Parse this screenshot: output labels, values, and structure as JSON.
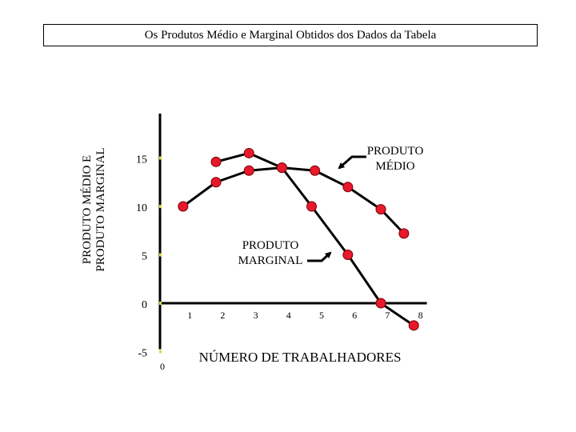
{
  "chart_data": {
    "type": "line",
    "title": "Os Produtos Médio e Marginal Obtidos dos Dados da Tabela",
    "xlabel": "NÚMERO DE TRABALHADORES",
    "ylabel_lines": [
      "PRODUTO MÉDIO E",
      "PRODUTO MARGINAL"
    ],
    "x_origin_label": "0",
    "xticks": [
      {
        "x": 1,
        "label": "1"
      },
      {
        "x": 2,
        "label": "2"
      },
      {
        "x": 3,
        "label": "3"
      },
      {
        "x": 4,
        "label": "4"
      },
      {
        "x": 5,
        "label": "5"
      },
      {
        "x": 6,
        "label": "6"
      },
      {
        "x": 7,
        "label": "7"
      },
      {
        "x": 8,
        "label": "8"
      }
    ],
    "yticks": [
      {
        "y": 15,
        "label": "15"
      },
      {
        "y": 10,
        "label": "10"
      },
      {
        "y": 5,
        "label": "5"
      },
      {
        "y": 0,
        "label": "0"
      },
      {
        "y": -5,
        "label": "-5"
      }
    ],
    "xlim": [
      0,
      8
    ],
    "ylim": [
      -5,
      20
    ],
    "grid": false,
    "series": [
      {
        "name": "PRODUTO MÉDIO",
        "label_lines": [
          "PRODUTO",
          "MÉDIO"
        ],
        "x": [
          0.7,
          1.7,
          2.7,
          3.7,
          4.7,
          5.7,
          6.7,
          7.4
        ],
        "y": [
          10,
          12.5,
          13.7,
          14,
          13.7,
          12,
          9.7,
          7.2
        ],
        "color": "#000000"
      },
      {
        "name": "PRODUTO MARGINAL",
        "label_lines": [
          "PRODUTO",
          "MARGINAL"
        ],
        "x": [
          1.7,
          2.7,
          3.7,
          4.6,
          5.7,
          6.7,
          7.7
        ],
        "y": [
          14.6,
          15.5,
          14,
          10,
          5,
          0,
          -2.3
        ],
        "color": "#000000"
      }
    ],
    "marker_color": "#e8192c",
    "marker_edge": "#7a0000"
  }
}
